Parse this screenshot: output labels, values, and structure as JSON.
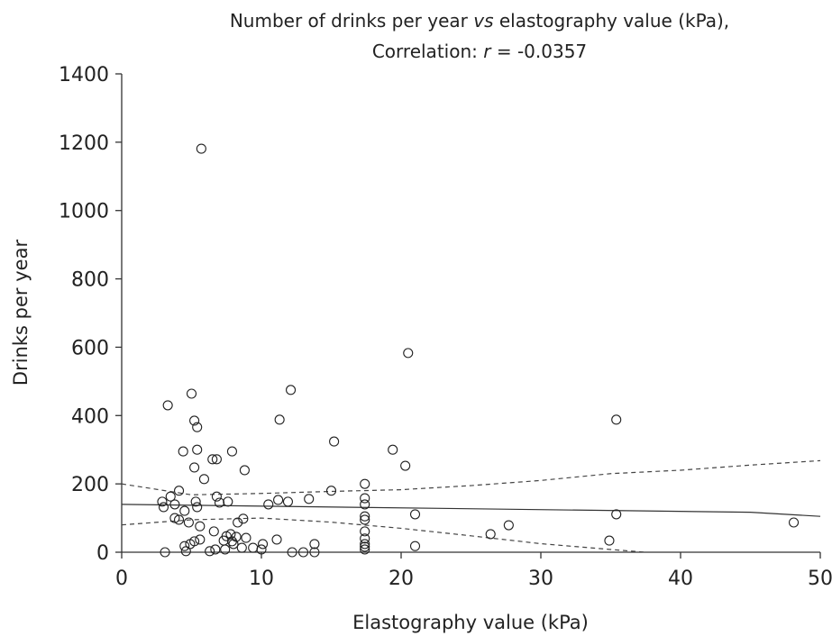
{
  "chart_data": {
    "type": "scatter",
    "title": {
      "line1": [
        "Number of drinks per year",
        "vs",
        "elastography value (kPa),"
      ],
      "line2": [
        "Correlation:",
        "r",
        "= -0.0357"
      ]
    },
    "x_label": "Elastography value (kPa)",
    "y_label": "Drinks per year",
    "xlim": [
      0,
      50
    ],
    "xticks": [
      0,
      10,
      20,
      30,
      40,
      50
    ],
    "ylim": [
      0,
      1400
    ],
    "yticks": [
      0,
      200,
      400,
      600,
      800,
      1000,
      1200,
      1400
    ],
    "color": "#222222",
    "x": [
      3.3,
      5.7,
      5.0,
      5.2,
      5.4,
      4.4,
      5.4,
      6.5,
      6.8,
      7.9,
      5.2,
      8.8,
      5.9,
      4.1,
      3.5,
      2.9,
      3.0,
      3.8,
      5.3,
      5.4,
      6.8,
      7.0,
      7.6,
      4.5,
      3.8,
      4.1,
      4.8,
      5.6,
      6.6,
      8.3,
      8.7,
      7.5,
      7.8,
      8.2,
      8.9,
      7.3,
      7.9,
      8.0,
      4.5,
      4.9,
      5.2,
      5.6,
      4.6,
      3.1,
      6.3,
      6.7,
      7.4,
      8.6,
      9.4,
      10.0,
      10.1,
      10.5,
      11.3,
      11.2,
      11.9,
      12.1,
      11.1,
      12.2,
      13.0,
      13.8,
      13.8,
      13.4,
      15.0,
      15.2,
      17.4,
      17.4,
      17.4,
      17.4,
      17.4,
      17.4,
      17.4,
      17.4,
      17.4,
      17.4,
      19.4,
      20.3,
      20.5,
      21.0,
      21.0,
      26.4,
      27.7,
      34.9,
      35.4,
      35.4,
      48.1
    ],
    "y": [
      430,
      1181,
      464,
      385,
      366,
      295,
      300,
      272,
      272,
      295,
      248,
      240,
      214,
      180,
      163,
      148,
      132,
      140,
      148,
      132,
      163,
      145,
      148,
      121,
      100,
      95,
      87,
      76,
      61,
      87,
      98,
      47,
      53,
      45,
      42,
      34,
      32,
      24,
      18,
      24,
      32,
      37,
      3,
      0,
      3,
      8,
      8,
      13,
      13,
      8,
      24,
      140,
      388,
      153,
      148,
      475,
      37,
      0,
      0,
      24,
      0,
      156,
      180,
      324,
      200,
      158,
      140,
      105,
      95,
      61,
      40,
      24,
      16,
      8,
      300,
      253,
      583,
      111,
      18,
      53,
      79,
      34,
      388,
      111,
      87
    ],
    "fit": {
      "x": [
        0,
        45,
        50
      ],
      "y": [
        140,
        117,
        105
      ],
      "color": "#333333",
      "dashed": false
    },
    "ci_upper": {
      "x": [
        0,
        5,
        10,
        15,
        20,
        25,
        30,
        35,
        40,
        45,
        50
      ],
      "y": [
        200,
        168,
        172,
        178,
        183,
        195,
        210,
        230,
        240,
        255,
        268
      ],
      "color": "#444444",
      "dashed": true
    },
    "ci_lower": {
      "x": [
        0,
        5,
        10,
        15,
        20,
        25,
        30,
        35,
        37.5
      ],
      "y": [
        80,
        95,
        100,
        88,
        70,
        48,
        25,
        8,
        0
      ],
      "color": "#444444",
      "dashed": true
    }
  }
}
